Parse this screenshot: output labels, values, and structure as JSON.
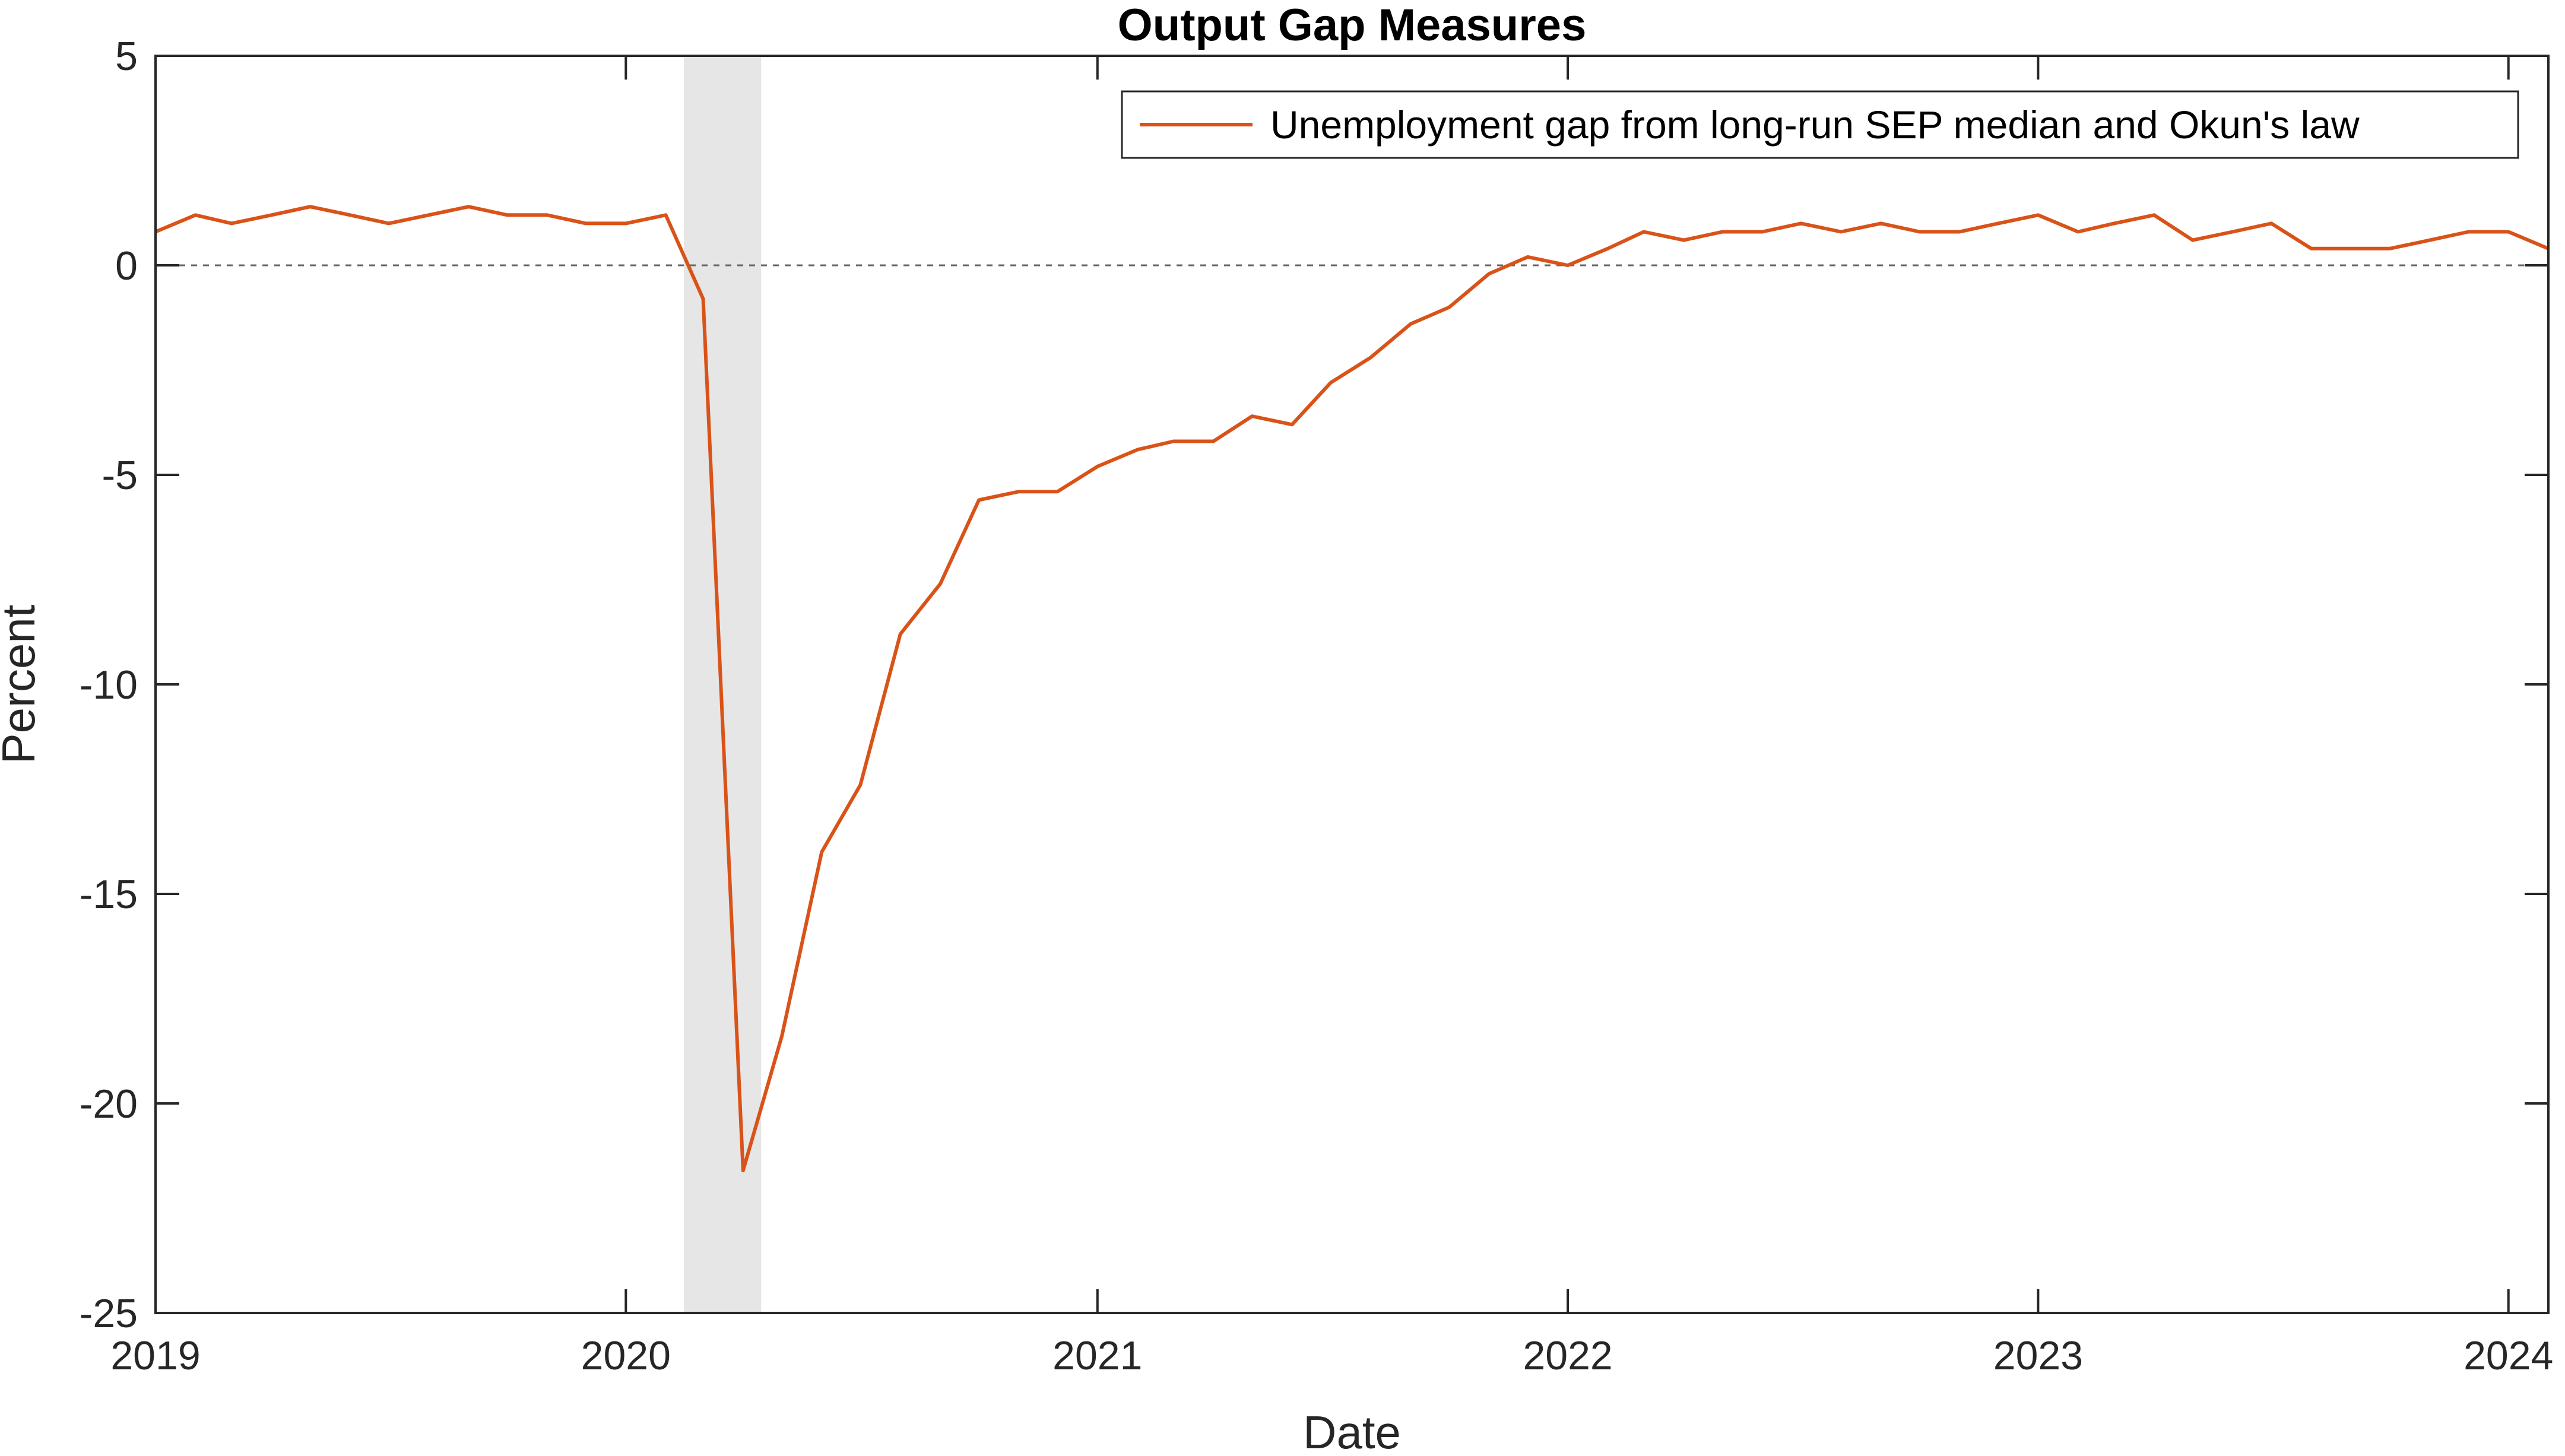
{
  "chart_data": {
    "type": "line",
    "title": "Output Gap Measures",
    "xlabel": "Date",
    "ylabel": "Percent",
    "xlim": [
      "2019-01-01",
      "2024-02-01"
    ],
    "ylim": [
      -25,
      5
    ],
    "x_ticks": [
      "2019",
      "2020",
      "2021",
      "2022",
      "2023",
      "2024"
    ],
    "y_ticks": [
      5,
      0,
      -5,
      -10,
      -15,
      -20,
      -25
    ],
    "y_tick_labels": [
      "5",
      "0",
      "-5",
      "-10",
      "-15",
      "-20",
      "-25"
    ],
    "grid": false,
    "legend_position": "top-right",
    "reference_line": {
      "y": 0,
      "style": "dashed",
      "color": "#666666"
    },
    "shaded_region": {
      "x_start": "2020-02-15",
      "x_end": "2020-04-15",
      "color": "#e6e6e6"
    },
    "series": [
      {
        "name": "Unemployment gap from long-run SEP median and Okun's law",
        "color": "#d95319",
        "x": [
          "2019-01-01",
          "2019-02-01",
          "2019-03-01",
          "2019-04-01",
          "2019-05-01",
          "2019-06-01",
          "2019-07-01",
          "2019-08-01",
          "2019-09-01",
          "2019-10-01",
          "2019-11-01",
          "2019-12-01",
          "2020-01-01",
          "2020-02-01",
          "2020-03-01",
          "2020-04-01",
          "2020-05-01",
          "2020-06-01",
          "2020-07-01",
          "2020-08-01",
          "2020-09-01",
          "2020-10-01",
          "2020-11-01",
          "2020-12-01",
          "2021-01-01",
          "2021-02-01",
          "2021-03-01",
          "2021-04-01",
          "2021-05-01",
          "2021-06-01",
          "2021-07-01",
          "2021-08-01",
          "2021-09-01",
          "2021-10-01",
          "2021-11-01",
          "2021-12-01",
          "2022-01-01",
          "2022-02-01",
          "2022-03-01",
          "2022-04-01",
          "2022-05-01",
          "2022-06-01",
          "2022-07-01",
          "2022-08-01",
          "2022-09-01",
          "2022-10-01",
          "2022-11-01",
          "2022-12-01",
          "2023-01-01",
          "2023-02-01",
          "2023-03-01",
          "2023-04-01",
          "2023-05-01",
          "2023-06-01",
          "2023-07-01",
          "2023-08-01",
          "2023-09-01",
          "2023-10-01",
          "2023-11-01",
          "2023-12-01",
          "2024-01-01",
          "2024-02-01"
        ],
        "values": [
          0.8,
          1.2,
          1.0,
          1.2,
          1.4,
          1.2,
          1.0,
          1.2,
          1.4,
          1.2,
          1.2,
          1.0,
          1.0,
          1.2,
          -0.8,
          -21.6,
          -18.4,
          -14.0,
          -12.4,
          -8.8,
          -7.6,
          -5.6,
          -5.4,
          -5.4,
          -4.8,
          -4.4,
          -4.2,
          -4.2,
          -3.6,
          -3.8,
          -2.8,
          -2.2,
          -1.4,
          -1.0,
          -0.2,
          0.2,
          0.0,
          0.4,
          0.8,
          0.6,
          0.8,
          0.8,
          1.0,
          0.8,
          1.0,
          0.8,
          0.8,
          1.0,
          1.2,
          0.8,
          1.0,
          1.2,
          0.6,
          0.8,
          1.0,
          0.4,
          0.4,
          0.4,
          0.6,
          0.8,
          0.8,
          0.4
        ]
      }
    ]
  }
}
